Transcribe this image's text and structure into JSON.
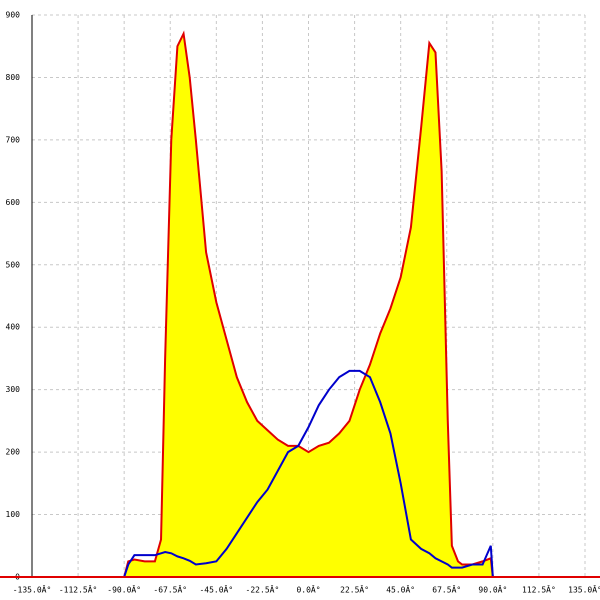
{
  "chart_data": {
    "type": "area",
    "x": [
      -90,
      -88,
      -85,
      -80,
      -75,
      -72,
      -70,
      -67,
      -64,
      -61,
      -58,
      -55,
      -50,
      -45,
      -40,
      -35,
      -30,
      -25,
      -20,
      -15,
      -10,
      -5,
      0,
      5,
      10,
      15,
      20,
      25,
      30,
      35,
      40,
      45,
      50,
      55,
      59,
      62,
      65,
      68,
      70,
      73,
      75,
      80,
      85,
      89,
      90
    ],
    "series": [
      {
        "color": "#e00000",
        "fill": "#ffff00",
        "values": [
          0,
          25,
          28,
          25,
          25,
          60,
          350,
          700,
          850,
          870,
          800,
          700,
          520,
          440,
          380,
          320,
          280,
          250,
          235,
          220,
          210,
          210,
          200,
          210,
          215,
          230,
          250,
          300,
          340,
          390,
          430,
          480,
          560,
          720,
          855,
          840,
          650,
          250,
          50,
          25,
          20,
          20,
          25,
          30,
          0
        ]
      },
      {
        "color": "#0000cc",
        "values": [
          0,
          20,
          35,
          35,
          35,
          38,
          40,
          38,
          33,
          30,
          26,
          20,
          22,
          25,
          45,
          70,
          95,
          120,
          140,
          170,
          200,
          210,
          240,
          275,
          300,
          320,
          330,
          330,
          320,
          280,
          230,
          150,
          60,
          45,
          38,
          30,
          25,
          20,
          15,
          15,
          15,
          20,
          20,
          50,
          0
        ]
      }
    ],
    "xlim": [
      -135,
      135
    ],
    "ylim": [
      0,
      900
    ],
    "xticks": [
      {
        "value": -135,
        "label": "-135.0Â°"
      },
      {
        "value": -112.5,
        "label": "-112.5Â°"
      },
      {
        "value": -90,
        "label": "-90.0Â°"
      },
      {
        "value": -67.5,
        "label": "-67.5Â°"
      },
      {
        "value": -45,
        "label": "-45.0Â°"
      },
      {
        "value": -22.5,
        "label": "-22.5Â°"
      },
      {
        "value": 0,
        "label": "0.0Â°"
      },
      {
        "value": 22.5,
        "label": "22.5Â°"
      },
      {
        "value": 45,
        "label": "45.0Â°"
      },
      {
        "value": 67.5,
        "label": "67.5Â°"
      },
      {
        "value": 90,
        "label": "90.0Â°"
      },
      {
        "value": 112.5,
        "label": "112.5Â°"
      },
      {
        "value": 135,
        "label": "135.0Â°"
      }
    ],
    "yticks": [
      0,
      100,
      200,
      300,
      400,
      500,
      600,
      700,
      800,
      900
    ],
    "grid": true,
    "axis_color": "#e00000"
  }
}
